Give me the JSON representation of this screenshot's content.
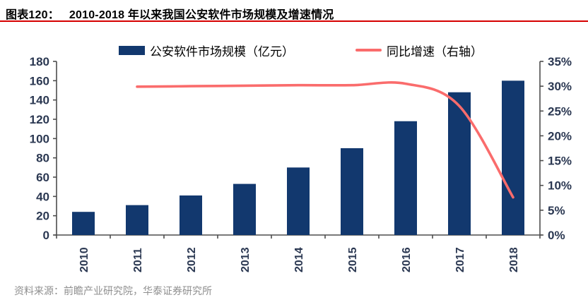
{
  "header": {
    "figure_label": "图表120：",
    "title": "2010-2018 年以来我国公安软件市场规模及增速情况"
  },
  "legend": {
    "bar_series_label": "公安软件市场规模（亿元）",
    "line_series_label": "同比增速（右轴）"
  },
  "footer": {
    "source": "资料来源：前瞻产业研究院，华泰证券研究所"
  },
  "colors": {
    "bar": "#12386E",
    "line": "#FA6C6C",
    "title_rule": "#D60000",
    "axis": "#4D4D4D",
    "tick_label": "#2B3852",
    "footer_text": "#8F8F8F"
  },
  "chart_data": {
    "type": "bar",
    "subtype": "combo-bar-line-dual-axis",
    "title": "2010-2018 年以来我国公安软件市场规模及增速情况",
    "categories": [
      "2010",
      "2011",
      "2012",
      "2013",
      "2014",
      "2015",
      "2016",
      "2017",
      "2018"
    ],
    "series": [
      {
        "name": "公安软件市场规模（亿元）",
        "type": "bar",
        "axis": "left",
        "values": [
          24,
          31,
          41,
          53,
          70,
          90,
          118,
          148,
          160
        ]
      },
      {
        "name": "同比增速（右轴）",
        "type": "line",
        "axis": "right",
        "values": [
          null,
          29.9,
          30,
          30.1,
          30.2,
          30.2,
          30.5,
          26,
          7.6
        ]
      }
    ],
    "left_axis": {
      "min": 0,
      "max": 180,
      "step": 20,
      "ticks": [
        "0",
        "20",
        "40",
        "60",
        "80",
        "100",
        "120",
        "140",
        "160",
        "180"
      ]
    },
    "right_axis": {
      "min": 0,
      "max": 35,
      "step": 5,
      "ticks": [
        "0%",
        "5%",
        "10%",
        "15%",
        "20%",
        "25%",
        "30%",
        "35%"
      ]
    },
    "grid": false,
    "legend_position": "top",
    "xlabel": "",
    "ylabel_left": "亿元",
    "ylabel_right": "%"
  }
}
